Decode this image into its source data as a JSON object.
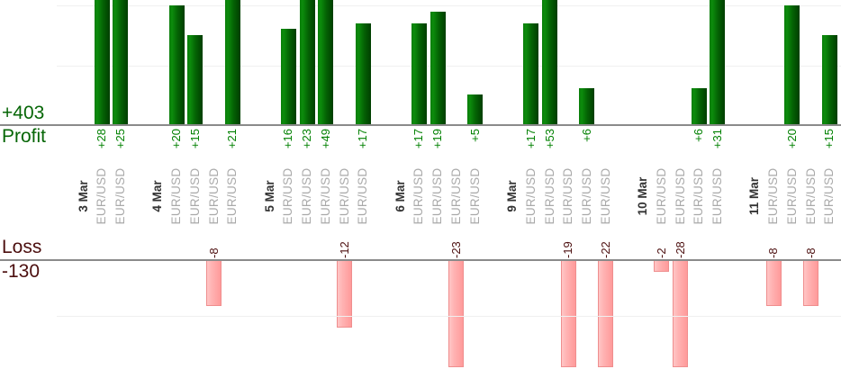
{
  "summary": {
    "profit_total_label": "+403",
    "profit_axis_label": "Profit",
    "loss_axis_label": "Loss",
    "loss_total_label": "-130"
  },
  "colors": {
    "profit_text": "#008000",
    "profit_total_text": "#066606",
    "loss_text": "#4c0f0f",
    "bar_green_light": "#0c8c0c",
    "bar_green_dark": "#003e00",
    "bar_pink_fill": "#ffb3b3",
    "bar_pink_border": "#ef8e8e",
    "date_text": "#333333",
    "symbol_text": "#a9a9a9",
    "axis_line": "#8a8a8a",
    "gridline": "#f0f0f0"
  },
  "chart_data": {
    "type": "bar",
    "orientation": "vertical",
    "title": "",
    "xlabel": "",
    "ylabel_top": "Profit",
    "ylabel_bottom": "Loss",
    "totals": {
      "profit": 403,
      "loss": -130
    },
    "gridline_interval": 10,
    "visible_profit_range": [
      0,
      21
    ],
    "visible_loss_range": [
      0,
      -19
    ],
    "groups": [
      {
        "date": "3 Mar",
        "trades": [
          {
            "value": 28,
            "label": "+28",
            "symbol": "EUR/USD"
          },
          {
            "value": 25,
            "label": "+25",
            "symbol": "EUR/USD"
          }
        ]
      },
      {
        "date": "4 Mar",
        "trades": [
          {
            "value": 20,
            "label": "+20",
            "symbol": "EUR/USD"
          },
          {
            "value": 15,
            "label": "+15",
            "symbol": "EUR/USD"
          },
          {
            "value": -8,
            "label": "-8",
            "symbol": "EUR/USD"
          },
          {
            "value": 21,
            "label": "+21",
            "symbol": "EUR/USD"
          }
        ]
      },
      {
        "date": "5 Mar",
        "trades": [
          {
            "value": 16,
            "label": "+16",
            "symbol": "EUR/USD"
          },
          {
            "value": 23,
            "label": "+23",
            "symbol": "EUR/USD"
          },
          {
            "value": 49,
            "label": "+49",
            "symbol": "EUR/USD"
          },
          {
            "value": -12,
            "label": "-12",
            "symbol": "EUR/USD"
          },
          {
            "value": 17,
            "label": "+17",
            "symbol": "EUR/USD"
          }
        ]
      },
      {
        "date": "6 Mar",
        "trades": [
          {
            "value": 17,
            "label": "+17",
            "symbol": "EUR/USD"
          },
          {
            "value": 19,
            "label": "+19",
            "symbol": "EUR/USD"
          },
          {
            "value": -23,
            "label": "-23",
            "symbol": "EUR/USD"
          },
          {
            "value": 5,
            "label": "+5",
            "symbol": "EUR/USD"
          }
        ]
      },
      {
        "date": "9 Mar",
        "trades": [
          {
            "value": 17,
            "label": "+17",
            "symbol": "EUR/USD"
          },
          {
            "value": 53,
            "label": "+53",
            "symbol": "EUR/USD"
          },
          {
            "value": -19,
            "label": "-19",
            "symbol": "EUR/USD"
          },
          {
            "value": 6,
            "label": "+6",
            "symbol": "EUR/USD"
          },
          {
            "value": -22,
            "label": "-22",
            "symbol": "EUR/USD"
          }
        ]
      },
      {
        "date": "10 Mar",
        "trades": [
          {
            "value": -2,
            "label": "-2",
            "symbol": "EUR/USD"
          },
          {
            "value": -28,
            "label": "-28",
            "symbol": "EUR/USD"
          },
          {
            "value": 6,
            "label": "+6",
            "symbol": "EUR/USD"
          },
          {
            "value": 31,
            "label": "+31",
            "symbol": "EUR/USD"
          }
        ]
      },
      {
        "date": "11 Mar",
        "trades": [
          {
            "value": -8,
            "label": "-8",
            "symbol": "EUR/USD"
          },
          {
            "value": 20,
            "label": "+20",
            "symbol": "EUR/USD"
          },
          {
            "value": -8,
            "label": "-8",
            "symbol": "EUR/USD"
          },
          {
            "value": 15,
            "label": "+15",
            "symbol": "EUR/USD"
          }
        ]
      }
    ]
  }
}
